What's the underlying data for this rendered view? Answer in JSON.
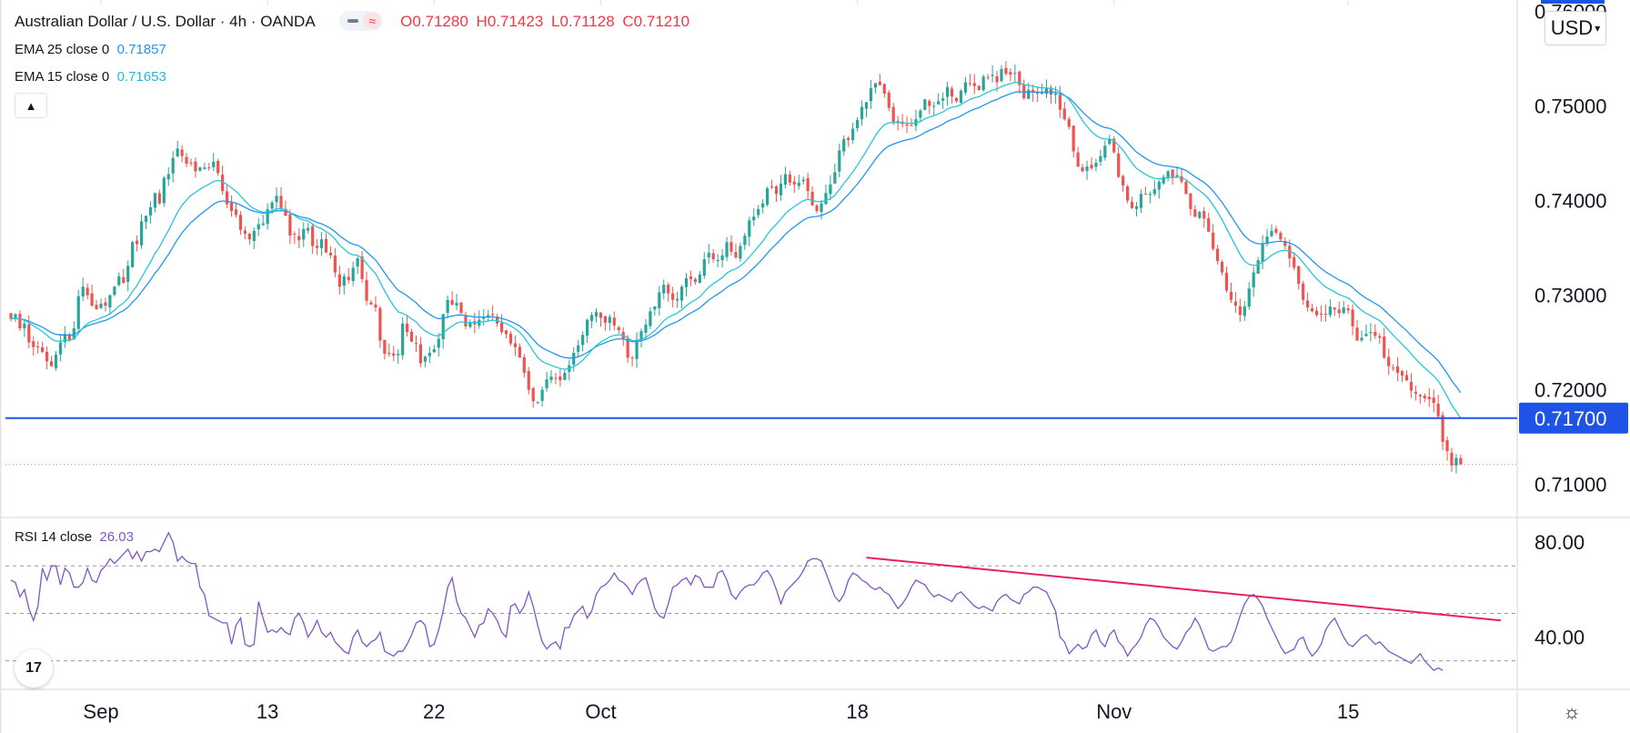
{
  "header": {
    "symbol": "Australian Dollar / U.S. Dollar · 4h · OANDA",
    "ohlc": {
      "o": "O0.71280",
      "h": "H0.71423",
      "l": "L0.71128",
      "c": "C0.71210"
    }
  },
  "indicators": {
    "ema25": {
      "label": "EMA 25 close 0",
      "value": "0.71857"
    },
    "ema15": {
      "label": "EMA 15 close 0",
      "value": "0.71653"
    },
    "rsi": {
      "label": "RSI 14 close",
      "value": "26.03"
    }
  },
  "currency_selector": "USD",
  "logo_text": "17",
  "colors": {
    "up": "#26a69a",
    "down": "#ef5350",
    "ema25": "#2196f3",
    "ema15": "#26c6da",
    "hline": "#1e53e5",
    "rsi": "#7e57c2",
    "trend": "#e91e63",
    "last": "#e57373"
  },
  "chart_data": [
    {
      "type": "candlestick",
      "title": "Australian Dollar / U.S. Dollar · 4h · OANDA",
      "x_labels": [
        {
          "label": "Sep",
          "index": 20
        },
        {
          "label": "13",
          "index": 57
        },
        {
          "label": "22",
          "index": 94
        },
        {
          "label": "Oct",
          "index": 131
        },
        {
          "label": "18",
          "index": 188
        },
        {
          "label": "Nov",
          "index": 245
        },
        {
          "label": "15",
          "index": 297
        }
      ],
      "y_axis": {
        "ylim": [
          0.7066,
          0.7612
        ],
        "ticks": [
          "0.71000",
          "0.72000",
          "0.73000",
          "0.74000",
          "0.75000",
          "0.76000"
        ]
      },
      "close": [
        0.7275,
        0.728,
        0.7265,
        0.727,
        0.725,
        0.7245,
        0.7245,
        0.724,
        0.723,
        0.7225,
        0.7237,
        0.725,
        0.7259,
        0.7252,
        0.7265,
        0.7299,
        0.7309,
        0.73,
        0.7289,
        0.7285,
        0.7291,
        0.7289,
        0.73,
        0.7309,
        0.732,
        0.7313,
        0.7331,
        0.7356,
        0.7354,
        0.7378,
        0.7384,
        0.7393,
        0.7408,
        0.7397,
        0.7424,
        0.7428,
        0.7445,
        0.7455,
        0.7447,
        0.7439,
        0.744,
        0.7431,
        0.7435,
        0.7435,
        0.7434,
        0.7441,
        0.7429,
        0.741,
        0.7396,
        0.7389,
        0.7385,
        0.7369,
        0.7365,
        0.7359,
        0.7368,
        0.7375,
        0.7376,
        0.7391,
        0.7398,
        0.7405,
        0.7392,
        0.7384,
        0.7363,
        0.7364,
        0.7358,
        0.737,
        0.7371,
        0.7352,
        0.735,
        0.7359,
        0.7345,
        0.7342,
        0.7324,
        0.7309,
        0.732,
        0.7316,
        0.7329,
        0.7339,
        0.7317,
        0.7294,
        0.729,
        0.7287,
        0.7252,
        0.7238,
        0.7238,
        0.7236,
        0.7238,
        0.727,
        0.7261,
        0.7251,
        0.7249,
        0.7228,
        0.7235,
        0.7239,
        0.7243,
        0.7254,
        0.728,
        0.7295,
        0.729,
        0.7292,
        0.7281,
        0.7267,
        0.7271,
        0.7269,
        0.7274,
        0.7276,
        0.7279,
        0.7279,
        0.727,
        0.7261,
        0.7259,
        0.7249,
        0.7245,
        0.7234,
        0.7218,
        0.72,
        0.7188,
        0.7187,
        0.72,
        0.7211,
        0.7214,
        0.7212,
        0.721,
        0.7218,
        0.7226,
        0.7239,
        0.7247,
        0.7258,
        0.7274,
        0.7279,
        0.7282,
        0.7276,
        0.7271,
        0.7277,
        0.7268,
        0.7263,
        0.7254,
        0.7234,
        0.7233,
        0.7253,
        0.7262,
        0.7269,
        0.7283,
        0.7288,
        0.7303,
        0.7311,
        0.7302,
        0.7295,
        0.7296,
        0.7309,
        0.7318,
        0.7317,
        0.7314,
        0.7322,
        0.7338,
        0.7345,
        0.7338,
        0.7337,
        0.7342,
        0.7356,
        0.7346,
        0.734,
        0.7352,
        0.7363,
        0.7379,
        0.7383,
        0.7391,
        0.7397,
        0.7413,
        0.7414,
        0.7407,
        0.7418,
        0.7428,
        0.7419,
        0.7417,
        0.7419,
        0.7422,
        0.741,
        0.7395,
        0.7389,
        0.7397,
        0.7408,
        0.7417,
        0.743,
        0.7453,
        0.7465,
        0.7464,
        0.7476,
        0.7485,
        0.7499,
        0.7504,
        0.7519,
        0.7524,
        0.7522,
        0.7513,
        0.7498,
        0.7483,
        0.7483,
        0.7481,
        0.7479,
        0.7479,
        0.7486,
        0.7495,
        0.7507,
        0.75,
        0.75,
        0.7505,
        0.7508,
        0.752,
        0.751,
        0.7505,
        0.7516,
        0.7525,
        0.7524,
        0.7521,
        0.7517,
        0.7531,
        0.753,
        0.7533,
        0.7525,
        0.7539,
        0.7534,
        0.7533,
        0.7535,
        0.7522,
        0.7508,
        0.7517,
        0.7514,
        0.7513,
        0.7514,
        0.7519,
        0.7512,
        0.7513,
        0.7496,
        0.7486,
        0.7478,
        0.7452,
        0.7436,
        0.7431,
        0.7436,
        0.7434,
        0.744,
        0.7447,
        0.7458,
        0.7465,
        0.7451,
        0.7425,
        0.7416,
        0.74,
        0.7392,
        0.7394,
        0.7407,
        0.7407,
        0.7407,
        0.7412,
        0.742,
        0.7425,
        0.7431,
        0.7425,
        0.7427,
        0.742,
        0.7407,
        0.7391,
        0.7383,
        0.7388,
        0.7381,
        0.7367,
        0.7349,
        0.7336,
        0.7324,
        0.7305,
        0.7295,
        0.7289,
        0.7279,
        0.7288,
        0.7307,
        0.7324,
        0.7337,
        0.7355,
        0.7362,
        0.7368,
        0.7366,
        0.7359,
        0.7352,
        0.7339,
        0.7329,
        0.7312,
        0.7295,
        0.7287,
        0.7283,
        0.7279,
        0.728,
        0.728,
        0.7288,
        0.7285,
        0.7281,
        0.7287,
        0.7284,
        0.7267,
        0.7252,
        0.7255,
        0.7259,
        0.7261,
        0.7257,
        0.7255,
        0.7234,
        0.7225,
        0.7223,
        0.7218,
        0.7215,
        0.721,
        0.7199,
        0.7196,
        0.7193,
        0.7191,
        0.719,
        0.7186,
        0.7172,
        0.7145,
        0.7135,
        0.712,
        0.7128,
        0.7121
      ],
      "hline": {
        "value": 0.717,
        "label": "0.71700"
      },
      "last_price": 0.7121
    },
    {
      "type": "line",
      "title": "RSI 14 close",
      "y_axis": {
        "ylim": [
          18,
          90
        ],
        "ticks": [
          "80.00",
          "40.00"
        ],
        "levels": [
          70,
          50,
          30
        ]
      },
      "rsi": [
        64,
        63,
        57,
        60,
        52,
        47,
        53,
        69,
        64,
        70,
        70,
        62,
        69,
        67,
        61,
        61,
        63,
        69,
        64,
        63,
        68,
        70,
        73,
        71,
        73,
        75,
        77,
        73,
        76,
        72,
        76,
        76,
        77,
        76,
        80,
        84,
        80,
        72,
        74,
        72,
        71,
        71,
        61,
        58,
        49,
        48,
        47,
        46,
        46,
        37,
        45,
        48,
        37,
        36,
        37,
        55,
        48,
        42,
        43,
        42,
        44,
        42,
        41,
        48,
        50,
        46,
        40,
        43,
        47,
        42,
        40,
        42,
        38,
        36,
        34,
        33,
        40,
        43,
        38,
        36,
        38,
        39,
        42,
        34,
        33,
        32,
        34,
        34,
        37,
        41,
        46,
        47,
        45,
        36,
        37,
        43,
        51,
        61,
        65,
        55,
        50,
        48,
        44,
        40,
        45,
        46,
        52,
        50,
        47,
        42,
        40,
        53,
        54,
        50,
        53,
        59,
        53,
        45,
        38,
        35,
        37,
        38,
        35,
        44,
        44,
        49,
        51,
        53,
        48,
        51,
        58,
        61,
        62,
        64,
        67,
        64,
        63,
        61,
        58,
        62,
        64,
        65,
        59,
        52,
        49,
        48,
        54,
        61,
        62,
        64,
        65,
        62,
        66,
        65,
        61,
        61,
        61,
        67,
        68,
        64,
        58,
        56,
        59,
        61,
        62,
        62,
        64,
        67,
        68,
        65,
        60,
        54,
        59,
        61,
        63,
        65,
        68,
        72,
        73,
        73,
        72,
        67,
        62,
        57,
        55,
        58,
        64,
        67,
        66,
        64,
        63,
        61,
        60,
        61,
        59,
        58,
        55,
        52,
        54,
        57,
        61,
        64,
        63,
        62,
        59,
        57,
        58,
        57,
        56,
        55,
        58,
        59,
        57,
        55,
        53,
        52,
        53,
        52,
        51,
        55,
        57,
        58,
        56,
        55,
        54,
        58,
        59,
        61,
        61,
        60,
        59,
        55,
        51,
        40,
        38,
        33,
        35,
        37,
        35,
        36,
        41,
        43,
        38,
        36,
        41,
        43,
        38,
        36,
        32,
        35,
        37,
        40,
        45,
        48,
        47,
        44,
        40,
        38,
        36,
        35,
        38,
        42,
        44,
        48,
        45,
        40,
        35,
        34,
        35,
        36,
        36,
        38,
        43,
        49,
        54,
        57,
        58,
        56,
        53,
        48,
        44,
        40,
        36,
        33,
        34,
        35,
        39,
        40,
        35,
        32,
        34,
        37,
        43,
        46,
        48,
        44,
        40,
        37,
        36,
        38,
        40,
        41,
        39,
        37,
        38,
        36,
        34,
        33,
        32,
        31,
        30,
        29,
        31,
        33,
        30,
        28,
        26,
        27,
        26
      ]
    }
  ]
}
